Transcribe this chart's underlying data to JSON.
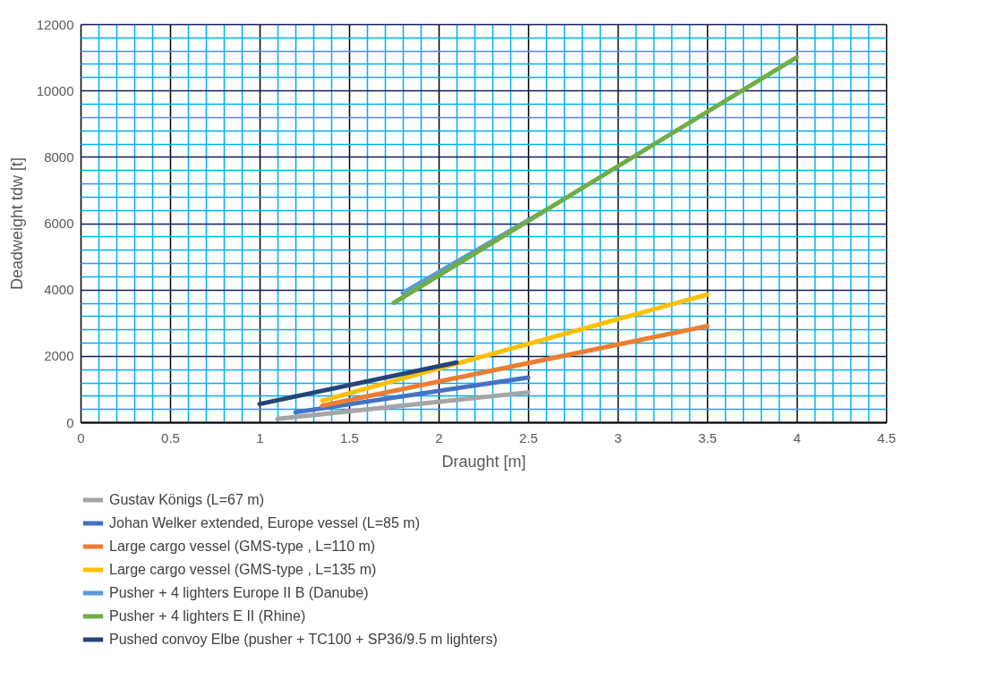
{
  "chart_data": {
    "type": "line",
    "xlabel": "Draught [m]",
    "ylabel": "Deadweight tdw [t]",
    "xlim": [
      0,
      4.5
    ],
    "xticks": [
      0,
      {
        "value": 0.1,
        "label": null
      },
      {
        "value": 0.2,
        "label": null
      },
      {
        "value": 0.3,
        "label": null
      },
      {
        "value": 0.4,
        "label": null
      },
      0.5,
      {
        "value": 0.6,
        "label": null
      },
      {
        "value": 0.7,
        "label": null
      },
      {
        "value": 0.8,
        "label": null
      },
      {
        "value": 0.9,
        "label": null
      },
      1,
      {
        "value": 1.1,
        "label": null
      },
      {
        "value": 1.2,
        "label": null
      },
      {
        "value": 1.3,
        "label": null
      },
      {
        "value": 1.4,
        "label": null
      },
      1.5,
      {
        "value": 1.6,
        "label": null
      },
      {
        "value": 1.7,
        "label": null
      },
      {
        "value": 1.8,
        "label": null
      },
      {
        "value": 1.9,
        "label": null
      },
      2,
      {
        "value": 2.1,
        "label": null
      },
      {
        "value": 2.2,
        "label": null
      },
      {
        "value": 2.3,
        "label": null
      },
      {
        "value": 2.4,
        "label": null
      },
      2.5,
      {
        "value": 2.6,
        "label": null
      },
      {
        "value": 2.7,
        "label": null
      },
      {
        "value": 2.8,
        "label": null
      },
      {
        "value": 2.9,
        "label": null
      },
      3,
      {
        "value": 3.1,
        "label": null
      },
      {
        "value": 3.2,
        "label": null
      },
      {
        "value": 3.3,
        "label": null
      },
      {
        "value": 3.4,
        "label": null
      },
      3.5,
      {
        "value": 3.6,
        "label": null
      },
      {
        "value": 3.7,
        "label": null
      },
      {
        "value": 3.8,
        "label": null
      },
      {
        "value": 3.9,
        "label": null
      },
      4,
      {
        "value": 4.1,
        "label": null
      },
      {
        "value": 4.2,
        "label": null
      },
      {
        "value": 4.3,
        "label": null
      },
      {
        "value": 4.4,
        "label": null
      },
      4.5
    ],
    "ylim": [
      0,
      12000
    ],
    "yticks": [
      0,
      {
        "value": 400,
        "label": null
      },
      {
        "value": 800,
        "label": null
      },
      {
        "value": 1200,
        "label": null
      },
      {
        "value": 1600,
        "label": null
      },
      2000,
      {
        "value": 2400,
        "label": null
      },
      {
        "value": 2800,
        "label": null
      },
      {
        "value": 3200,
        "label": null
      },
      {
        "value": 3600,
        "label": null
      },
      4000,
      {
        "value": 4400,
        "label": null
      },
      {
        "value": 4800,
        "label": null
      },
      {
        "value": 5200,
        "label": null
      },
      {
        "value": 5600,
        "label": null
      },
      6000,
      {
        "value": 6400,
        "label": null
      },
      {
        "value": 6800,
        "label": null
      },
      {
        "value": 7200,
        "label": null
      },
      {
        "value": 7600,
        "label": null
      },
      8000,
      {
        "value": 8400,
        "label": null
      },
      {
        "value": 8800,
        "label": null
      },
      {
        "value": 9200,
        "label": null
      },
      {
        "value": 9600,
        "label": null
      },
      10000,
      {
        "value": 10400,
        "label": null
      },
      {
        "value": 10800,
        "label": null
      },
      {
        "value": 11200,
        "label": null
      },
      {
        "value": 11600,
        "label": null
      },
      12000
    ],
    "grid": true,
    "legend": "bottom",
    "marker": "none",
    "line_style": "solid",
    "series": [
      {
        "name": "Gustav Königs (L=67 m)",
        "color": "#a5a5a5",
        "x": [
          1.1,
          2.5
        ],
        "values": [
          100,
          900
        ]
      },
      {
        "name": "Johan Welker extended, Europe vessel (L=85 m)",
        "color": "#4472c4",
        "x": [
          1.2,
          2.5
        ],
        "values": [
          300,
          1350
        ]
      },
      {
        "name": "Large cargo vessel (GMS-type , L=110 m)",
        "color": "#ed7d31",
        "x": [
          1.35,
          3.5
        ],
        "values": [
          500,
          2900
        ]
      },
      {
        "name": "Large cargo vessel (GMS-type , L=135 m)",
        "color": "#ffc000",
        "x": [
          1.35,
          3.5
        ],
        "values": [
          650,
          3850
        ]
      },
      {
        "name": "Pusher + 4 lighters Europe II B (Danube)",
        "color": "#5b9bd5",
        "x": [
          1.8,
          2.6
        ],
        "values": [
          3900,
          6400
        ]
      },
      {
        "name": "Pusher + 4 lighters E II (Rhine)",
        "color": "#70ad47",
        "x": [
          1.75,
          4
        ],
        "values": [
          3600,
          11000
        ]
      },
      {
        "name": "Pushed convoy Elbe (pusher + TC100 + SP36/9.5 m lighters)",
        "color": "#264478",
        "x": [
          1.0,
          2.1
        ],
        "values": [
          550,
          1800
        ]
      }
    ]
  }
}
